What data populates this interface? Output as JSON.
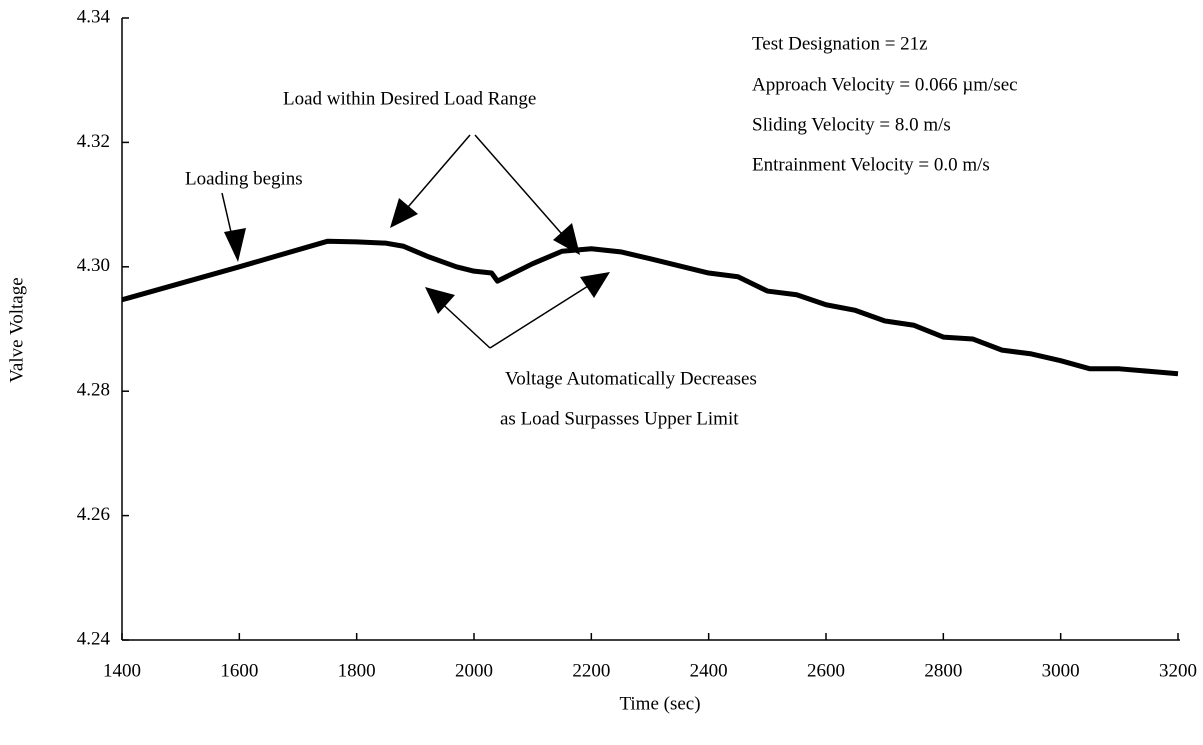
{
  "chart_data": {
    "type": "line",
    "xlabel": "Time (sec)",
    "ylabel": "Valve Voltage",
    "annotations": [
      "Loading begins",
      "Load within Desired Load Range",
      "Voltage Automatically Decreases",
      "as Load Surpasses Upper Limit",
      "Test Designation = 21z",
      "Approach Velocity = 0.066 µm/sec",
      "Sliding Velocity = 8.0 m/s",
      "Entrainment Velocity = 0.0 m/s"
    ],
    "x": [
      1400,
      1600,
      1750,
      1800,
      1850,
      1880,
      1920,
      1970,
      2000,
      2030,
      2040,
      2100,
      2150,
      2200,
      2250,
      2300,
      2400,
      2450,
      2500,
      2550,
      2600,
      2650,
      2700,
      2750,
      2800,
      2850,
      2900,
      2950,
      3000,
      3050,
      3100,
      3150,
      3200
    ],
    "series": [
      {
        "color": "#000000",
        "values": [
          4.2947,
          4.3,
          4.3041,
          4.304,
          4.3038,
          4.3033,
          4.3017,
          4.3,
          4.2993,
          4.299,
          4.2977,
          4.3005,
          4.3025,
          4.3029,
          4.3024,
          4.3013,
          4.299,
          4.2984,
          4.2961,
          4.2955,
          4.2939,
          4.293,
          4.2913,
          4.2906,
          4.2887,
          4.2884,
          4.2866,
          4.286,
          4.2849,
          4.2836,
          4.2836,
          4.2832,
          4.2828
        ]
      }
    ],
    "xlim": [
      1400,
      3200
    ],
    "xticks": [
      1400,
      1600,
      1800,
      2000,
      2200,
      2400,
      2600,
      2800,
      3000,
      3200
    ],
    "ylim": [
      4.24,
      4.34
    ],
    "yticks": [
      4.24,
      {
        "value": 4.26,
        "label": "4.26"
      },
      {
        "value": 4.28,
        "label": "4.28"
      },
      {
        "value": 4.3,
        "label": "4.30"
      },
      {
        "value": 4.32,
        "label": "4.32"
      },
      4.34
    ],
    "grid": false
  }
}
